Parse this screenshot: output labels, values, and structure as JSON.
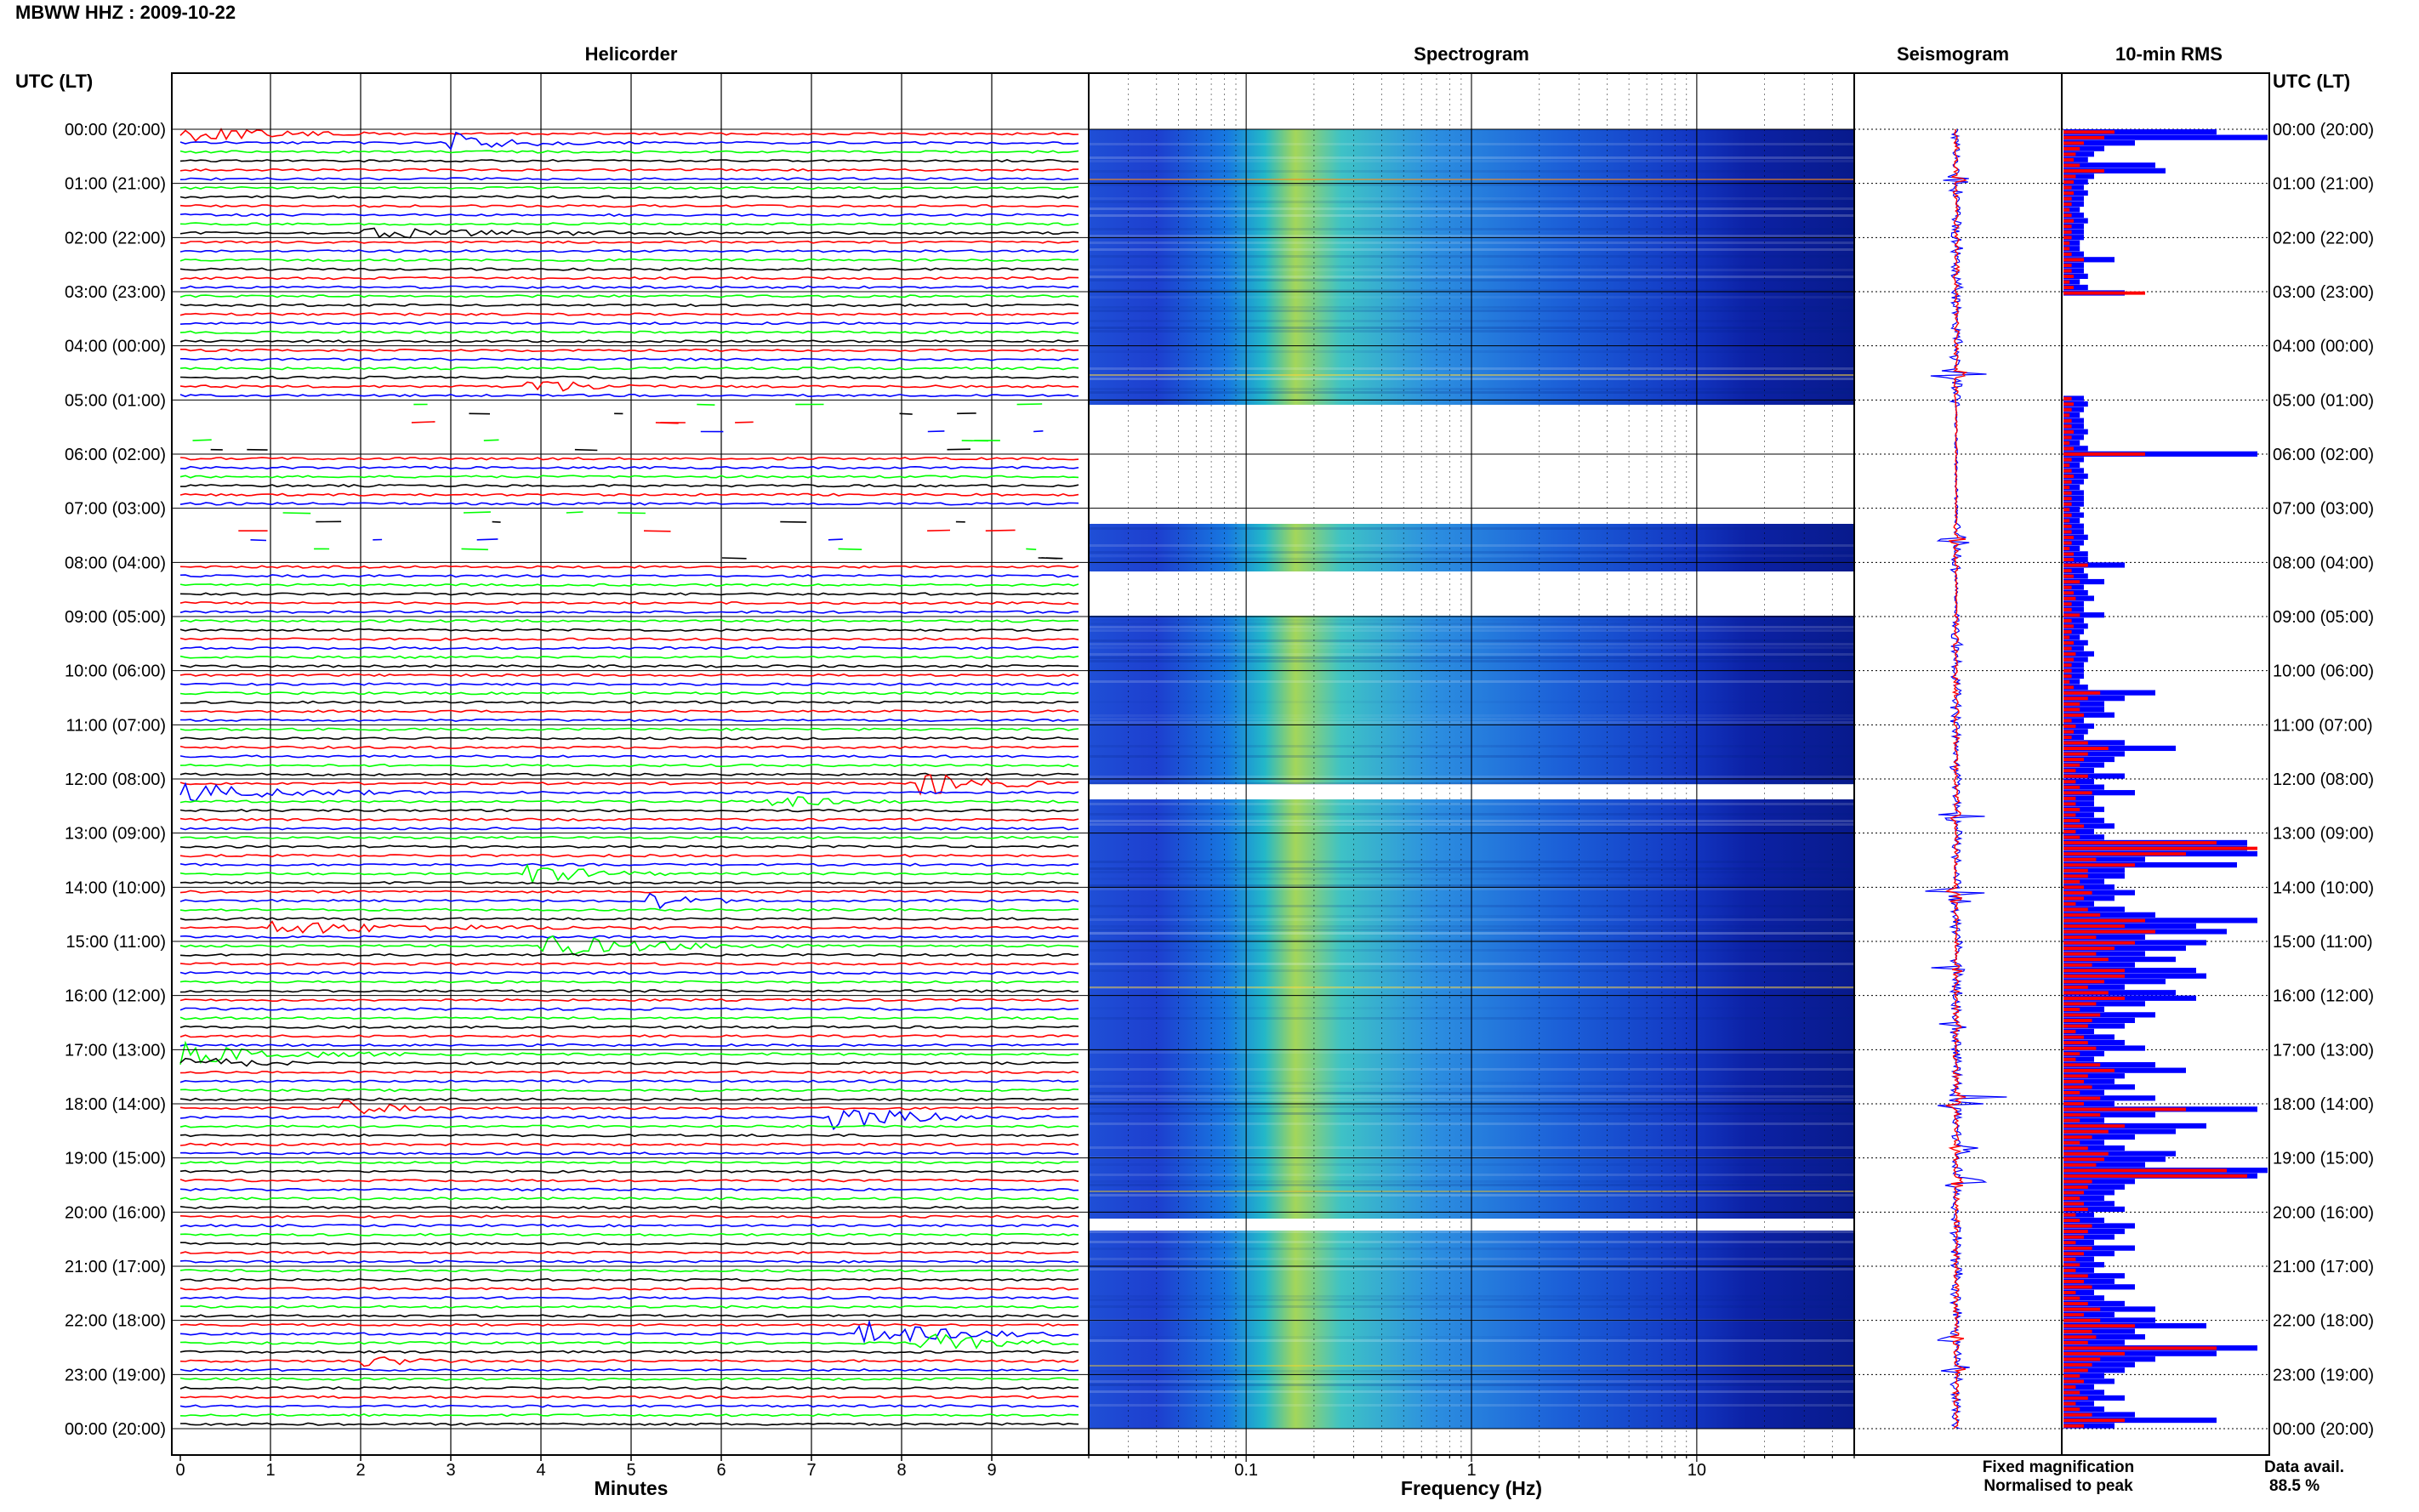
{
  "header": {
    "station": "MBWW HHZ : 2009-10-22"
  },
  "panels": {
    "helicorder": "Helicorder",
    "spectrogram": "Spectrogram",
    "seismogram": "Seismogram",
    "rms": "10-min RMS"
  },
  "axes": {
    "utc_header": "UTC (LT)",
    "minutes_label": "Minutes",
    "frequency_label": "Frequency (Hz)",
    "minute_ticks": [
      "0",
      "1",
      "2",
      "3",
      "4",
      "5",
      "6",
      "7",
      "8",
      "9"
    ],
    "freq_ticks": [
      "0.1",
      "1",
      "10"
    ]
  },
  "legend": {
    "fixed": "Fixed magnification",
    "normalised": "Normalised to peak",
    "fixed_color": "#0000ff",
    "normalised_color": "#ff0000"
  },
  "availability": {
    "label": "Data avail.",
    "value": "88.5 %"
  },
  "hour_labels": [
    "00:00 (20:00)",
    "01:00 (21:00)",
    "02:00 (22:00)",
    "03:00 (23:00)",
    "04:00 (00:00)",
    "05:00 (01:00)",
    "06:00 (02:00)",
    "07:00 (03:00)",
    "08:00 (04:00)",
    "09:00 (05:00)",
    "10:00 (06:00)",
    "11:00 (07:00)",
    "12:00 (08:00)",
    "13:00 (09:00)",
    "14:00 (10:00)",
    "15:00 (11:00)",
    "16:00 (12:00)",
    "17:00 (13:00)",
    "18:00 (14:00)",
    "19:00 (15:00)",
    "20:00 (16:00)",
    "21:00 (17:00)",
    "22:00 (18:00)",
    "23:00 (19:00)",
    "00:00 (20:00)"
  ],
  "chart_data": {
    "type": "bar",
    "title": "10-min RMS",
    "series_colors": [
      "#ff0000",
      "#0000ff",
      "#00ff00",
      "#000000"
    ],
    "rms_fixed": [
      0.75,
      1.0,
      0.35,
      0.2,
      0.15,
      0.12,
      0.45,
      0.5,
      0.15,
      0.12,
      0.1,
      0.12,
      0.1,
      0.1,
      0.08,
      0.1,
      0.12,
      0.1,
      0.1,
      0.1,
      0.08,
      0.08,
      0.1,
      0.25,
      0.1,
      0.1,
      0.12,
      0.08,
      0.12,
      0.3,
      0.06,
      0.05,
      0.06,
      0.05,
      0.06,
      0.05,
      0.05,
      0.05,
      0.04,
      0.05,
      0.05,
      0.05,
      0.06,
      0.05,
      0.05,
      0.05,
      0.05,
      0.05,
      0.1,
      0.12,
      0.1,
      0.08,
      0.1,
      0.1,
      0.12,
      0.1,
      0.08,
      0.12,
      0.95,
      0.1,
      0.08,
      0.1,
      0.12,
      0.1,
      0.08,
      0.1,
      0.1,
      0.1,
      0.08,
      0.1,
      0.08,
      0.1,
      0.1,
      0.12,
      0.1,
      0.08,
      0.12,
      0.12,
      0.3,
      0.1,
      0.12,
      0.2,
      0.1,
      0.12,
      0.15,
      0.1,
      0.1,
      0.2,
      0.1,
      0.12,
      0.1,
      0.08,
      0.12,
      0.1,
      0.15,
      0.12,
      0.1,
      0.1,
      0.1,
      0.08,
      0.12,
      0.45,
      0.3,
      0.2,
      0.2,
      0.25,
      0.1,
      0.15,
      0.12,
      0.1,
      0.3,
      0.55,
      0.3,
      0.25,
      0.2,
      0.15,
      0.3,
      0.15,
      0.2,
      0.35,
      0.15,
      0.15,
      0.2,
      0.15,
      0.2,
      0.25,
      0.15,
      0.2,
      0.9,
      0.9,
      0.95,
      0.4,
      0.85,
      0.3,
      0.3,
      0.2,
      0.25,
      0.35,
      0.25,
      0.15,
      0.3,
      0.45,
      0.95,
      0.65,
      0.8,
      0.4,
      0.7,
      0.6,
      0.4,
      0.55,
      0.35,
      0.65,
      0.7,
      0.5,
      0.3,
      0.55,
      0.65,
      0.4,
      0.2,
      0.45,
      0.35,
      0.3,
      0.15,
      0.25,
      0.3,
      0.4,
      0.2,
      0.15,
      0.45,
      0.6,
      0.3,
      0.25,
      0.35,
      0.2,
      0.45,
      0.25,
      0.95,
      0.45,
      0.2,
      0.7,
      0.55,
      0.35,
      0.2,
      0.3,
      0.55,
      0.5,
      0.4,
      1.0,
      0.95,
      0.35,
      0.3,
      0.25,
      0.2,
      0.25,
      0.3,
      0.15,
      0.2,
      0.35,
      0.3,
      0.25,
      0.15,
      0.35,
      0.25,
      0.15,
      0.2,
      0.15,
      0.3,
      0.25,
      0.35,
      0.15,
      0.2,
      0.3,
      0.45,
      0.25,
      0.45,
      0.7,
      0.35,
      0.4,
      0.3,
      0.95,
      0.75,
      0.45,
      0.35,
      0.3,
      0.2,
      0.25,
      0.15,
      0.2,
      0.3,
      0.15,
      0.2,
      0.35,
      0.75,
      0.25
    ],
    "rms_normalised": [
      0.25,
      0.2,
      0.1,
      0.08,
      0.06,
      0.05,
      0.08,
      0.2,
      0.06,
      0.05,
      0.04,
      0.05,
      0.04,
      0.04,
      0.03,
      0.04,
      0.05,
      0.04,
      0.04,
      0.04,
      0.03,
      0.03,
      0.04,
      0.1,
      0.04,
      0.04,
      0.05,
      0.03,
      0.05,
      0.4,
      0.03,
      0.02,
      0.03,
      0.02,
      0.03,
      0.02,
      0.02,
      0.02,
      0.02,
      0.02,
      0.02,
      0.02,
      0.03,
      0.02,
      0.02,
      0.02,
      0.02,
      0.02,
      0.04,
      0.05,
      0.04,
      0.03,
      0.04,
      0.04,
      0.05,
      0.04,
      0.03,
      0.05,
      0.4,
      0.04,
      0.03,
      0.04,
      0.05,
      0.04,
      0.03,
      0.04,
      0.04,
      0.04,
      0.03,
      0.04,
      0.03,
      0.04,
      0.04,
      0.05,
      0.04,
      0.03,
      0.05,
      0.05,
      0.12,
      0.04,
      0.05,
      0.08,
      0.04,
      0.05,
      0.06,
      0.04,
      0.04,
      0.08,
      0.04,
      0.05,
      0.04,
      0.03,
      0.05,
      0.04,
      0.06,
      0.05,
      0.04,
      0.04,
      0.04,
      0.03,
      0.05,
      0.18,
      0.12,
      0.08,
      0.08,
      0.1,
      0.04,
      0.06,
      0.05,
      0.04,
      0.12,
      0.22,
      0.12,
      0.1,
      0.08,
      0.06,
      0.12,
      0.06,
      0.08,
      0.14,
      0.06,
      0.06,
      0.08,
      0.06,
      0.08,
      0.1,
      0.06,
      0.08,
      0.75,
      0.95,
      0.6,
      0.16,
      0.35,
      0.12,
      0.12,
      0.08,
      0.1,
      0.14,
      0.1,
      0.06,
      0.12,
      0.18,
      0.4,
      0.3,
      0.45,
      0.16,
      0.35,
      0.25,
      0.16,
      0.22,
      0.14,
      0.3,
      0.3,
      0.2,
      0.12,
      0.22,
      0.3,
      0.16,
      0.08,
      0.18,
      0.14,
      0.12,
      0.06,
      0.1,
      0.12,
      0.16,
      0.08,
      0.06,
      0.18,
      0.25,
      0.12,
      0.1,
      0.14,
      0.08,
      0.18,
      0.1,
      0.6,
      0.18,
      0.08,
      0.3,
      0.22,
      0.14,
      0.08,
      0.12,
      0.22,
      0.2,
      0.16,
      0.8,
      0.9,
      0.14,
      0.12,
      0.1,
      0.08,
      0.1,
      0.12,
      0.06,
      0.08,
      0.14,
      0.12,
      0.1,
      0.06,
      0.14,
      0.1,
      0.06,
      0.08,
      0.06,
      0.12,
      0.1,
      0.14,
      0.06,
      0.08,
      0.12,
      0.18,
      0.1,
      0.18,
      0.35,
      0.14,
      0.16,
      0.12,
      0.75,
      0.3,
      0.18,
      0.14,
      0.12,
      0.08,
      0.1,
      0.06,
      0.08,
      0.12,
      0.06,
      0.08,
      0.14,
      0.3,
      0.1
    ]
  }
}
